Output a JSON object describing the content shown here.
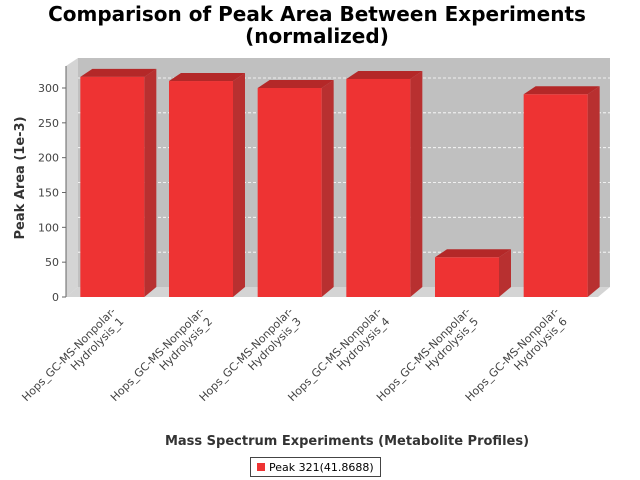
{
  "chart_data": {
    "type": "bar",
    "title_line1": "Comparison of Peak Area Between Experiments",
    "title_line2": "(normalized)",
    "xlabel": "Mass Spectrum Experiments (Metabolite Profiles)",
    "ylabel": "Peak Area (1e-3)",
    "ylim": [
      0,
      330
    ],
    "yticks": [
      "0",
      "50",
      "100",
      "150",
      "200",
      "250",
      "300"
    ],
    "grid": true,
    "legend_position": "bottom",
    "categories": [
      [
        "Hops_GC-MS-Nonpolar-",
        "Hydrolysis_1"
      ],
      [
        "Hops_GC-MS-Nonpolar-",
        "Hydrolysis_2"
      ],
      [
        "Hops_GC-MS-Nonpolar-",
        "Hydrolysis_3"
      ],
      [
        "Hops_GC-MS-Nonpolar-",
        "Hydrolysis_4"
      ],
      [
        "Hops_GC-MS-Nonpolar-",
        "Hydrolysis_5"
      ],
      [
        "Hops_GC-MS-Nonpolar-",
        "Hydrolysis_6"
      ]
    ],
    "series": [
      {
        "name": "Peak 321(41.8688)",
        "values": [
          316,
          310,
          300,
          313,
          57,
          291
        ]
      }
    ],
    "colors": {
      "bar": "#ee3333",
      "bar_top": "#b42828",
      "bar_side": "#b83030",
      "plot_bg": "#c0c0c0",
      "plot_wall": "#d4d4d4"
    }
  }
}
